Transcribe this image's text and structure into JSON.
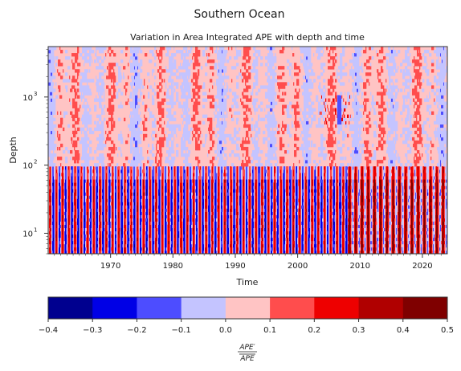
{
  "figure": {
    "suptitle": "Southern Ocean"
  },
  "chart_data": [
    {
      "type": "heatmap",
      "title": "Variation in Area Integrated APE with depth and time",
      "xlabel": "Time",
      "ylabel": "Depth",
      "x_scale": "linear",
      "y_scale": "log",
      "xlim": [
        1960,
        2024
      ],
      "ylim": [
        5,
        5500
      ],
      "x_ticks": [
        1970,
        1980,
        1990,
        2000,
        2010,
        2020
      ],
      "x_tick_labels": [
        "1970",
        "1980",
        "1990",
        "2000",
        "2010",
        "2020"
      ],
      "y_ticks": [
        10,
        100,
        1000
      ],
      "y_tick_labels": [
        "10",
        "10",
        "10"
      ],
      "y_tick_exponents": [
        "1",
        "2",
        "3"
      ],
      "description_of_pattern": [
        "Shallow layer (depth < ~100) shows strong seasonal alternation between positive (red) and negative (blue) anomalies across all years",
        "Positive anomalies in the shallow layer intensify after ~2008 (darker reds)",
        "Deep layer (depth > ~100) dominated by weak positive anomalies (0 to 0.1) with patches of weak negative anomalies (-0.1 to 0)",
        "Isolated strong anomalies near depth ~500-1000 around 2004-2008"
      ],
      "colorbar": {
        "label_numerator": "APE′",
        "label_denominator": "APE",
        "boundaries": [
          -0.4,
          -0.3,
          -0.2,
          -0.1,
          0.0,
          0.1,
          0.2,
          0.3,
          0.4,
          0.5
        ],
        "tick_labels": [
          "−0.4",
          "−0.3",
          "−0.2",
          "−0.1",
          "0.0",
          "0.1",
          "0.2",
          "0.3",
          "0.4",
          "0.5"
        ],
        "colors": [
          "#00008f",
          "#0000e6",
          "#4d4dff",
          "#c4c4ff",
          "#ffc4c4",
          "#ff4d4d",
          "#ee0000",
          "#b00000",
          "#7f0000"
        ]
      },
      "grid": false
    }
  ]
}
